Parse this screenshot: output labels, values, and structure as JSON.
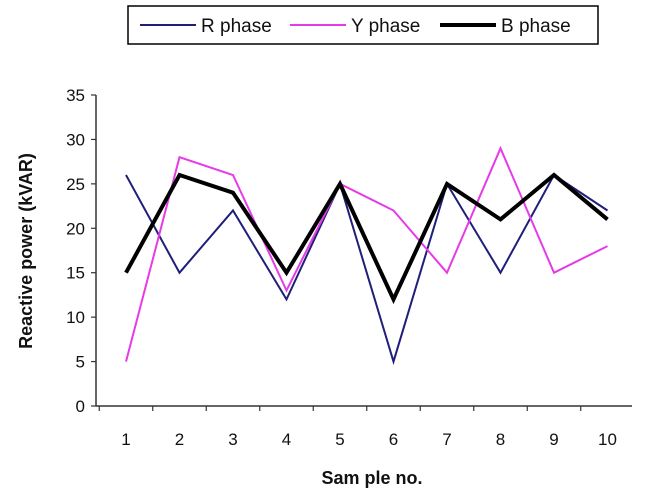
{
  "chart_data": {
    "type": "line",
    "xlabel": "Sam ple no.",
    "ylabel": "Reactive power (kVAR)",
    "categories": [
      "1",
      "2",
      "3",
      "4",
      "5",
      "6",
      "7",
      "8",
      "9",
      "10"
    ],
    "yticks": [
      "0",
      "5",
      "10",
      "15",
      "20",
      "25",
      "30",
      "35"
    ],
    "ylim": [
      0,
      35
    ],
    "grid": false,
    "legend_position": "top",
    "series": [
      {
        "name": "R phase",
        "color": "#1f1f7a",
        "values": [
          26,
          15,
          22,
          12,
          25,
          5,
          25,
          15,
          26,
          22
        ]
      },
      {
        "name": "Y phase",
        "color": "#e63be6",
        "values": [
          5,
          28,
          26,
          13,
          25,
          22,
          15,
          29,
          15,
          18
        ]
      },
      {
        "name": "B phase",
        "color": "#000000",
        "values": [
          15,
          26,
          24,
          15,
          25,
          12,
          25,
          21,
          26,
          21
        ]
      }
    ]
  }
}
